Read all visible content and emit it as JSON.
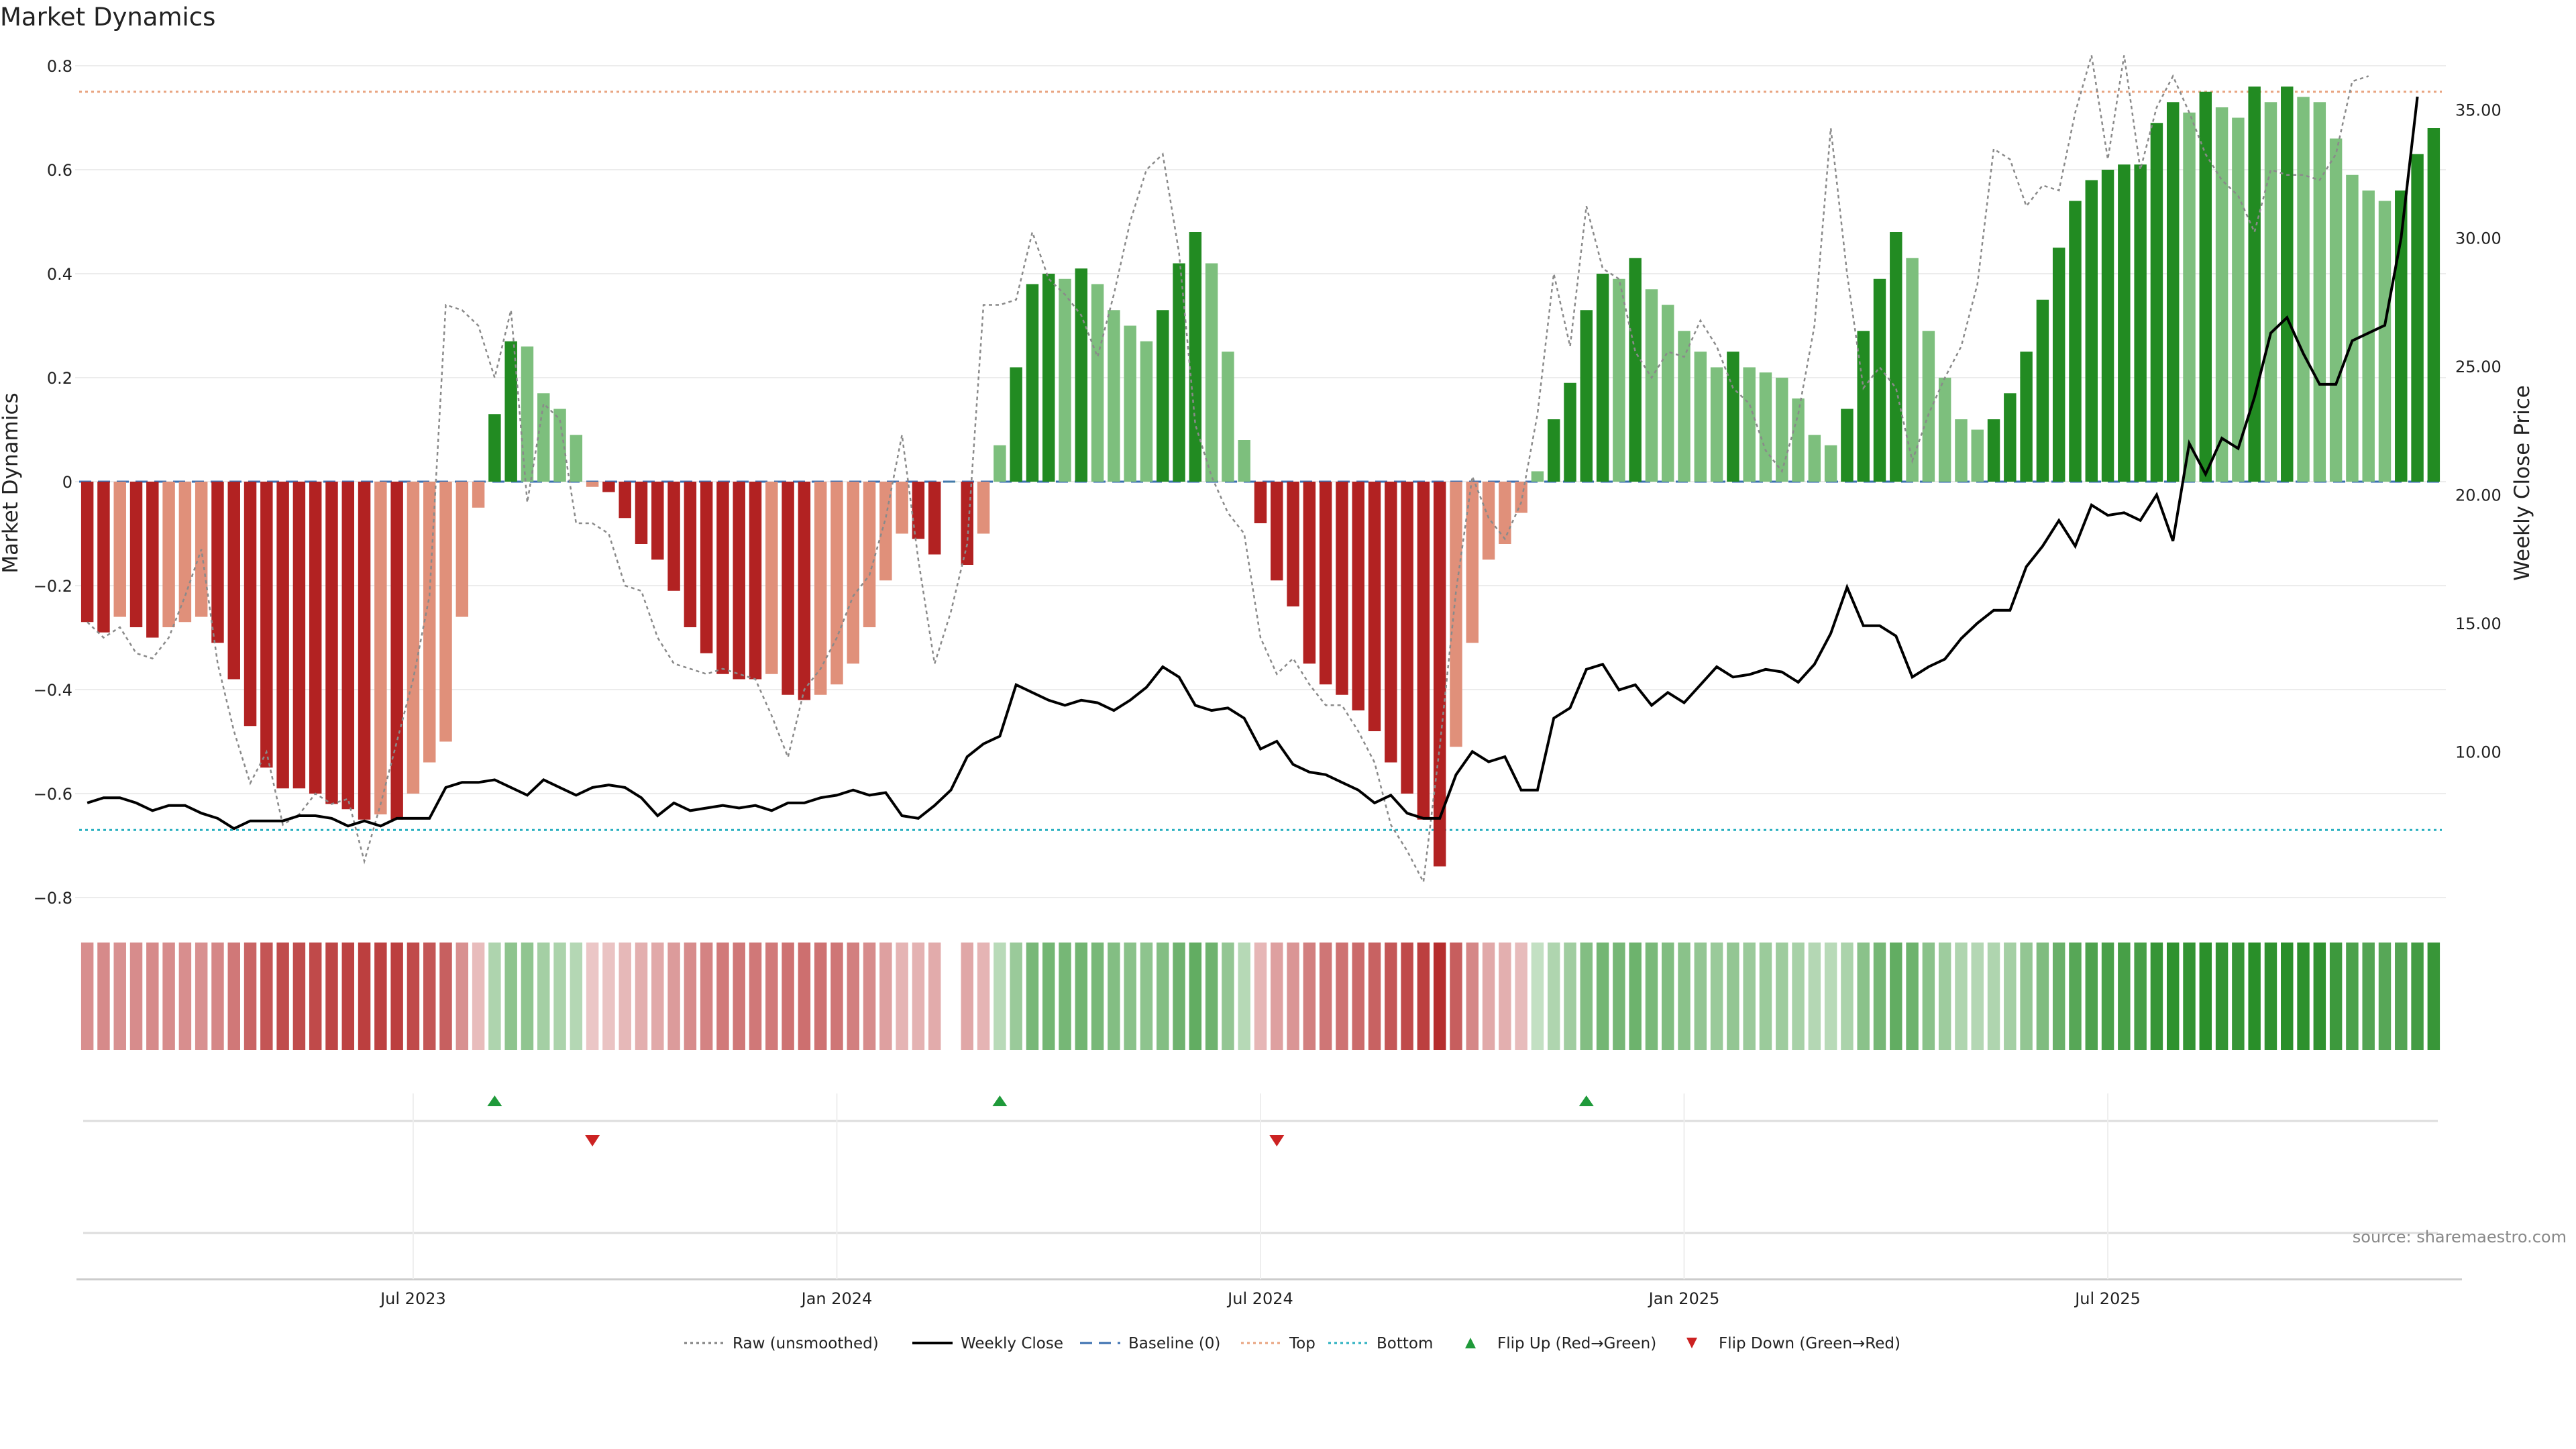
{
  "chart_data": {
    "type": "bar",
    "title": "Market Dynamics",
    "ylabel": "Market Dynamics",
    "y2label": "Weekly Close Price",
    "ylim": [
      -0.83,
      0.83
    ],
    "y2lim": [
      4.0,
      37.7
    ],
    "yticks": [
      {
        "v": 0.8,
        "label": "0.8"
      },
      {
        "v": 0.6,
        "label": "0.6"
      },
      {
        "v": 0.4,
        "label": "0.4"
      },
      {
        "v": 0.2,
        "label": "0.2"
      },
      {
        "v": 0,
        "label": "0"
      },
      {
        "v": -0.2,
        "label": "−0.2"
      },
      {
        "v": -0.4,
        "label": "−0.4"
      },
      {
        "v": -0.6,
        "label": "−0.6"
      },
      {
        "v": -0.8,
        "label": "−0.8"
      }
    ],
    "y2ticks": [
      {
        "v": 35,
        "label": "35.00"
      },
      {
        "v": 30,
        "label": "30.00"
      },
      {
        "v": 25,
        "label": "25.00"
      },
      {
        "v": 20,
        "label": "20.00"
      },
      {
        "v": 15,
        "label": "15.00"
      },
      {
        "v": 10,
        "label": "10.00"
      }
    ],
    "xticks": [
      {
        "i": 20,
        "label": "Jul 2023"
      },
      {
        "i": 46,
        "label": "Jan 2024"
      },
      {
        "i": 72,
        "label": "Jul 2024"
      },
      {
        "i": 98,
        "label": "Jan 2025"
      },
      {
        "i": 124,
        "label": "Jul 2025"
      }
    ],
    "thresholds": {
      "top": 0.75,
      "bottom": -0.67,
      "baseline": 0
    },
    "values": [
      -0.27,
      -0.29,
      -0.26,
      -0.28,
      -0.3,
      -0.28,
      -0.27,
      -0.26,
      -0.31,
      -0.38,
      -0.47,
      -0.55,
      -0.59,
      -0.59,
      -0.6,
      -0.62,
      -0.63,
      -0.65,
      -0.64,
      -0.65,
      -0.6,
      -0.54,
      -0.5,
      -0.26,
      -0.05,
      0.13,
      0.27,
      0.26,
      0.17,
      0.14,
      0.09,
      -0.01,
      -0.02,
      -0.07,
      -0.12,
      -0.15,
      -0.21,
      -0.28,
      -0.33,
      -0.37,
      -0.38,
      -0.38,
      -0.37,
      -0.41,
      -0.42,
      -0.41,
      -0.39,
      -0.35,
      -0.28,
      -0.19,
      -0.1,
      -0.11,
      -0.14,
      0,
      -0.16,
      -0.1,
      0.07,
      0.22,
      0.38,
      0.4,
      0.39,
      0.41,
      0.38,
      0.33,
      0.3,
      0.27,
      0.33,
      0.42,
      0.48,
      0.42,
      0.25,
      0.08,
      -0.08,
      -0.19,
      -0.24,
      -0.35,
      -0.39,
      -0.41,
      -0.44,
      -0.48,
      -0.54,
      -0.6,
      -0.65,
      -0.74,
      -0.51,
      -0.31,
      -0.15,
      -0.12,
      -0.06,
      0.02,
      0.12,
      0.19,
      0.33,
      0.4,
      0.39,
      0.43,
      0.37,
      0.34,
      0.29,
      0.25,
      0.22,
      0.25,
      0.22,
      0.21,
      0.2,
      0.16,
      0.09,
      0.07,
      0.14,
      0.29,
      0.39,
      0.48,
      0.43,
      0.29,
      0.2,
      0.12,
      0.1,
      0.12,
      0.17,
      0.25,
      0.35,
      0.45,
      0.54,
      0.58,
      0.6,
      0.61,
      0.61,
      0.69,
      0.73,
      0.71,
      0.75,
      0.72,
      0.7,
      0.76,
      0.73,
      0.76,
      0.74,
      0.73,
      0.66,
      0.59,
      0.56,
      0.54,
      0.56,
      0.63,
      0.68
    ],
    "weekly_close": [
      8.0,
      8.2,
      8.2,
      8.0,
      7.7,
      7.9,
      7.9,
      7.6,
      7.4,
      7.0,
      7.3,
      7.3,
      7.3,
      7.5,
      7.5,
      7.4,
      7.1,
      7.3,
      7.1,
      7.4,
      7.4,
      7.4,
      8.6,
      8.8,
      8.8,
      8.9,
      8.6,
      8.3,
      8.9,
      8.6,
      8.3,
      8.6,
      8.7,
      8.6,
      8.2,
      7.5,
      8.0,
      7.7,
      7.8,
      7.9,
      7.8,
      7.9,
      7.7,
      8.0,
      8.0,
      8.2,
      8.3,
      8.5,
      8.3,
      8.4,
      7.5,
      7.4,
      7.9,
      8.5,
      9.8,
      10.3,
      10.6,
      12.6,
      12.3,
      12.0,
      11.8,
      12.0,
      11.9,
      11.6,
      12.0,
      12.5,
      13.3,
      12.9,
      11.8,
      11.6,
      11.7,
      11.3,
      10.1,
      10.4,
      9.5,
      9.2,
      9.1,
      8.8,
      8.5,
      8.0,
      8.3,
      7.6,
      7.4,
      7.4,
      9.1,
      10.0,
      9.6,
      9.8,
      8.5,
      8.5,
      11.3,
      11.7,
      13.2,
      13.4,
      12.4,
      12.6,
      11.8,
      12.3,
      11.9,
      12.6,
      13.3,
      12.9,
      13.0,
      13.2,
      13.1,
      12.7,
      13.4,
      14.6,
      16.4,
      14.9,
      14.9,
      14.5,
      12.9,
      13.3,
      13.6,
      14.4,
      15.0,
      15.5,
      15.5,
      17.2,
      18.0,
      19.0,
      18.0,
      19.6,
      19.2,
      19.3,
      19.0,
      20.0,
      18.2,
      22.0,
      20.8,
      22.2,
      21.8,
      23.8,
      26.3,
      26.9,
      25.5,
      24.3,
      24.3,
      26.0,
      26.3,
      26.6,
      30.0,
      35.5
    ],
    "raw": [
      -0.27,
      -0.3,
      -0.28,
      -0.33,
      -0.34,
      -0.3,
      -0.22,
      -0.13,
      -0.35,
      -0.48,
      -0.58,
      -0.52,
      -0.66,
      -0.64,
      -0.6,
      -0.62,
      -0.61,
      -0.73,
      -0.62,
      -0.5,
      -0.38,
      -0.22,
      0.34,
      0.33,
      0.3,
      0.2,
      0.33,
      -0.04,
      0.15,
      0.12,
      -0.08,
      -0.08,
      -0.1,
      -0.2,
      -0.21,
      -0.3,
      -0.35,
      -0.36,
      -0.37,
      -0.36,
      -0.37,
      -0.38,
      -0.45,
      -0.53,
      -0.4,
      -0.36,
      -0.3,
      -0.22,
      -0.18,
      -0.07,
      0.09,
      -0.15,
      -0.35,
      -0.25,
      -0.12,
      0.34,
      0.34,
      0.35,
      0.48,
      0.39,
      0.36,
      0.32,
      0.24,
      0.36,
      0.5,
      0.6,
      0.63,
      0.44,
      0.11,
      0.01,
      -0.06,
      -0.1,
      -0.3,
      -0.37,
      -0.34,
      -0.39,
      -0.43,
      -0.43,
      -0.48,
      -0.54,
      -0.66,
      -0.71,
      -0.77,
      -0.51,
      -0.21,
      0.01,
      -0.07,
      -0.11,
      -0.04,
      0.13,
      0.4,
      0.26,
      0.53,
      0.41,
      0.39,
      0.25,
      0.2,
      0.25,
      0.24,
      0.31,
      0.26,
      0.18,
      0.15,
      0.06,
      0.02,
      0.13,
      0.3,
      0.68,
      0.4,
      0.18,
      0.22,
      0.18,
      0.04,
      0.13,
      0.2,
      0.26,
      0.38,
      0.64,
      0.62,
      0.53,
      0.57,
      0.56,
      0.71,
      0.82,
      0.62,
      0.82,
      0.6,
      0.72,
      0.78,
      0.71,
      0.63,
      0.58,
      0.55,
      0.48,
      0.6,
      0.59,
      0.59,
      0.58,
      0.63,
      0.77,
      0.78
    ],
    "flip_up_index": [
      25,
      56,
      92
    ],
    "flip_down_index": [
      31,
      73
    ],
    "legend": [
      {
        "name": "Raw (unsmoothed)",
        "style": "dotted",
        "color": "#808080"
      },
      {
        "name": "Weekly Close",
        "style": "solid",
        "color": "#000000"
      },
      {
        "name": "Baseline (0)",
        "style": "dashed",
        "color": "#3a6fb0"
      },
      {
        "name": "Top",
        "style": "dotted",
        "color": "#e8a37f"
      },
      {
        "name": "Bottom",
        "style": "dotted",
        "color": "#28b0c0"
      },
      {
        "name": "Flip Up (Red→Green)",
        "style": "triangle-up",
        "color": "#1f9a3a"
      },
      {
        "name": "Flip Down (Green→Red)",
        "style": "triangle-down",
        "color": "#cc2222"
      }
    ]
  },
  "colors": {
    "red_strong": "#b22222",
    "red_soft": "#e0907a",
    "green_strong": "#228b22",
    "green_soft": "#7dbf7d",
    "grid": "#ececec",
    "axis": "#cccccc"
  },
  "source": "source: sharemaestro.com"
}
